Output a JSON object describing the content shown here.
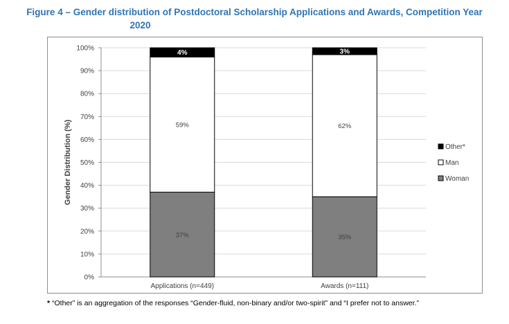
{
  "title_line1": "Figure 4 – Gender distribution of Postdoctoral Scholarship Applications and Awards, Competition Year",
  "title_line2": "2020",
  "footnote_star": "*",
  "footnote_text": " “Other” is an aggregation of the responses “Gender-fluid, non-binary and/or two-spirit” and “I prefer not to answer.”",
  "colors": {
    "woman": "#7f7f7f",
    "man": "#ffffff",
    "other": "#000000",
    "title": "#2e74b5"
  },
  "chart_data": {
    "type": "bar",
    "stacked": true,
    "title": "Figure 4 – Gender distribution of Postdoctoral Scholarship Applications and Awards, Competition Year 2020",
    "xlabel": "",
    "ylabel": "Gender Distribution (%)",
    "ylim": [
      0,
      100
    ],
    "yticks": [
      "0%",
      "10%",
      "20%",
      "30%",
      "40%",
      "50%",
      "60%",
      "70%",
      "80%",
      "90%",
      "100%"
    ],
    "categories": [
      "Applications (n=449)",
      "Awards (n=111)"
    ],
    "series": [
      {
        "name": "Woman",
        "values": [
          37,
          35
        ],
        "labels": [
          "37%",
          "35%"
        ],
        "color": "#7f7f7f"
      },
      {
        "name": "Man",
        "values": [
          59,
          62
        ],
        "labels": [
          "59%",
          "62%"
        ],
        "color": "#ffffff"
      },
      {
        "name": "Other*",
        "values": [
          4,
          3
        ],
        "labels": [
          "4%",
          "3%"
        ],
        "color": "#000000"
      }
    ],
    "legend": [
      "Other*",
      "Man",
      "Woman"
    ],
    "legend_position": "right",
    "grid": true
  }
}
